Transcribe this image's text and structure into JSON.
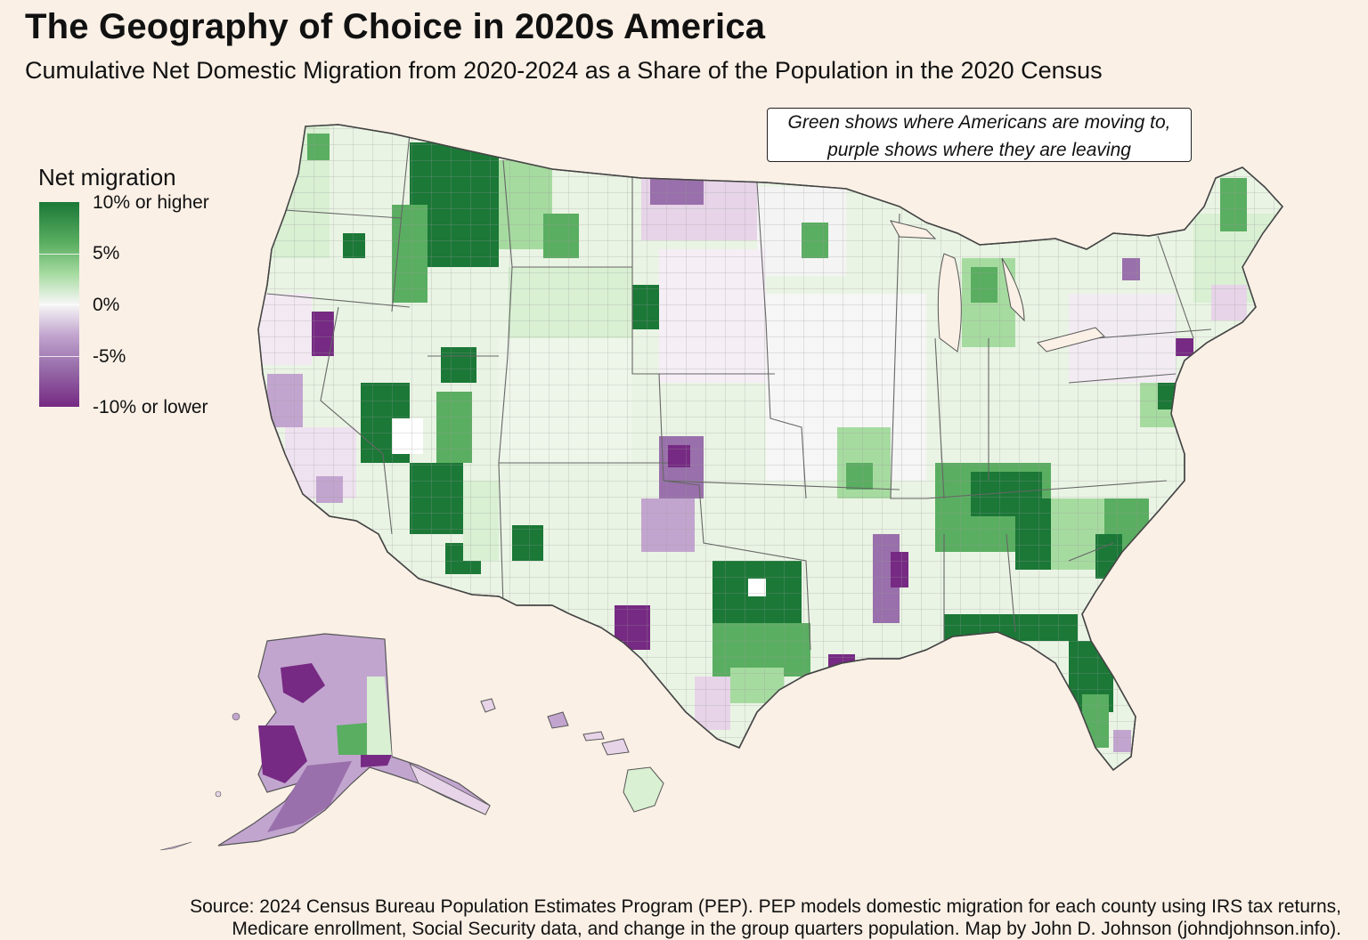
{
  "title": "The Geography of Choice in 2020s America",
  "subtitle": "Cumulative Net Domestic Migration from 2020-2024 as a Share of the Population in the 2020 Census",
  "annotation": {
    "line1": "Green shows where Americans are moving to,",
    "line2": "purple shows where they are leaving"
  },
  "legend": {
    "title": "Net migration",
    "labels": [
      "10% or higher",
      "5%",
      "0%",
      "-5%",
      "-10% or lower"
    ],
    "colors": [
      "#1b7837",
      "#5aae61",
      "#a6dba0",
      "#f7f7f7",
      "#c2a5cf",
      "#9970ab",
      "#762a83"
    ]
  },
  "source": {
    "line1": "Source: 2024 Census Bureau Population Estimates Program (PEP). PEP models domestic migration for each county using IRS tax returns,",
    "line2": "Medicare enrollment, Social Security data, and change in the group quarters population. Map by John D. Johnson (johndjohnson.info)."
  },
  "colors": {
    "background": "#faf0e6",
    "strong_in": "#1b7837",
    "mid_in": "#5aae61",
    "light_in": "#a6dba0",
    "pale_in": "#d9f0d3",
    "neutral": "#f7f7f7",
    "pale_out": "#e7d4e8",
    "light_out": "#c2a5cf",
    "mid_out": "#9970ab",
    "strong_out": "#762a83"
  }
}
